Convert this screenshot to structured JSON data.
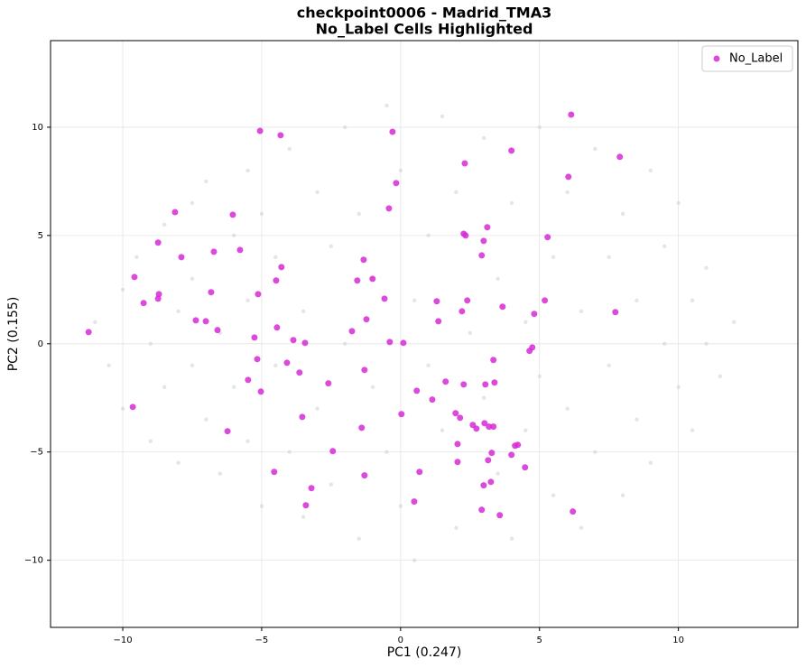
{
  "chart_data": {
    "type": "scatter",
    "title": "checkpoint0006 - Madrid_TMA3",
    "subtitle": "No_Label Cells Highlighted",
    "x_label": "PC1 (0.247)",
    "y_label": "PC2 (0.155)",
    "xlim": [
      -12.6,
      14.3
    ],
    "ylim": [
      -13.1,
      14
    ],
    "xticks": [
      {
        "value": -10,
        "label": "−10"
      },
      {
        "value": -5,
        "label": "−5"
      },
      0,
      5,
      10
    ],
    "yticks": [
      {
        "value": -10,
        "label": "−10"
      },
      {
        "value": -5,
        "label": "−5"
      },
      0,
      5,
      10
    ],
    "grid": true,
    "legend": "upper right",
    "series": [
      {
        "color": "#cccccc",
        "x": [
          -11,
          -10.5,
          -10,
          -10,
          -9.5,
          -9,
          -9,
          -8.5,
          -8.5,
          -8,
          -8,
          -7.5,
          -7.5,
          -7.5,
          -7,
          -7,
          -6.5,
          -6.5,
          -6,
          -6,
          -5.5,
          -5.5,
          -5.5,
          -5,
          -5,
          -4.5,
          -4.5,
          -4,
          -4,
          -3.5,
          -3.5,
          -3,
          -3,
          -2.5,
          -2.5,
          -2,
          -2,
          -1.5,
          -1.5,
          -1,
          -1,
          -0.5,
          -0.5,
          0,
          0,
          0.5,
          0.5,
          1,
          1,
          1.5,
          1.5,
          2,
          2,
          2.5,
          3,
          3,
          3.5,
          3.5,
          4,
          4,
          4.5,
          4.5,
          5,
          5,
          5.5,
          5.5,
          6,
          6,
          6.5,
          6.5,
          7,
          7,
          7.5,
          7.5,
          8,
          8,
          8.5,
          8.5,
          9,
          9,
          9.5,
          9.5,
          10,
          10,
          10.5,
          10.5,
          11,
          11,
          11.5,
          12
        ],
        "values": [
          1,
          -1,
          2.5,
          -3,
          4,
          0,
          -4.5,
          5.5,
          -2,
          1.5,
          -5.5,
          6.5,
          3,
          -1,
          -3.5,
          7.5,
          0.5,
          -6,
          5,
          -2,
          8,
          2,
          -4.5,
          -7.5,
          6,
          -1,
          4,
          9,
          -5,
          1.5,
          -8,
          7,
          -3,
          4.5,
          -6.5,
          10,
          0,
          -9,
          6,
          -2,
          3,
          11,
          -5,
          8,
          -7.5,
          2,
          -10,
          5,
          -1,
          10.5,
          -4,
          7,
          -8.5,
          0.5,
          9.5,
          -2.5,
          3,
          -6,
          6.5,
          -9,
          1,
          -4,
          10,
          -1.5,
          4,
          -7,
          7,
          -3,
          1.5,
          -8.5,
          9,
          -5,
          4,
          -1,
          6,
          -7,
          2,
          -3.5,
          8,
          -5.5,
          0,
          4.5,
          -2,
          6.5,
          2,
          -4,
          0,
          3.5,
          -1.5,
          1
        ]
      },
      {
        "name": "No_Label",
        "color": "#d62ad6",
        "x": [
          -11.23,
          -9.64,
          -9.58,
          -9.25,
          -8.73,
          -8.7,
          -8.73,
          -8.12,
          -7.89,
          -7.37,
          -7.01,
          -6.82,
          -6.72,
          -6.59,
          -6.23,
          -6.04,
          -5.78,
          -5.49,
          -5.26,
          -5.16,
          -5.13,
          -5.06,
          -5.03,
          -4.55,
          -4.48,
          -4.45,
          -4.32,
          -4.29,
          -4.09,
          -3.86,
          -3.64,
          -3.54,
          -3.44,
          -3.41,
          -3.21,
          -2.6,
          -2.44,
          -1.75,
          -1.56,
          -1.4,
          -1.33,
          -1.3,
          -1.3,
          -1.23,
          -1.01,
          -0.58,
          -0.42,
          -0.39,
          -0.29,
          -0.16,
          0.03,
          0.1,
          0.49,
          0.58,
          0.68,
          1.14,
          1.3,
          1.36,
          1.62,
          1.98,
          2.05,
          2.05,
          2.14,
          2.21,
          2.27,
          2.27,
          2.34,
          2.31,
          2.4,
          2.6,
          2.73,
          2.92,
          2.92,
          2.99,
          2.99,
          3.02,
          3.05,
          3.12,
          3.15,
          3.18,
          3.25,
          3.28,
          3.34,
          3.38,
          3.34,
          3.57,
          3.67,
          3.99,
          3.99,
          4.12,
          4.22,
          4.48,
          4.64,
          4.74,
          4.81,
          5.19,
          5.29,
          6.04,
          6.14,
          6.2,
          7.73,
          7.89
        ],
        "values": [
          0.54,
          -2.92,
          3.08,
          1.88,
          4.67,
          2.29,
          2.08,
          6.08,
          4.0,
          1.08,
          1.04,
          2.38,
          4.25,
          0.63,
          -4.04,
          5.96,
          4.33,
          -1.67,
          0.29,
          -0.71,
          2.29,
          9.83,
          -2.21,
          -5.92,
          2.92,
          0.75,
          9.63,
          3.54,
          -0.88,
          0.17,
          -1.33,
          -3.38,
          0.04,
          -7.46,
          -6.67,
          -1.83,
          -4.96,
          0.58,
          2.92,
          -3.88,
          3.88,
          -1.21,
          -6.08,
          1.13,
          3.0,
          2.08,
          6.25,
          0.08,
          9.79,
          7.42,
          -3.25,
          0.04,
          -7.29,
          -2.17,
          -5.92,
          -2.58,
          1.96,
          1.04,
          -1.75,
          -3.21,
          -4.63,
          -5.46,
          -3.42,
          1.5,
          -1.88,
          5.08,
          5.0,
          8.33,
          2.0,
          -3.75,
          -3.92,
          4.08,
          -7.67,
          4.75,
          -6.54,
          -3.67,
          -1.88,
          5.38,
          -5.38,
          -3.83,
          -6.38,
          -5.04,
          -3.83,
          -1.79,
          -0.75,
          -7.92,
          1.71,
          8.92,
          -5.13,
          -4.71,
          -4.67,
          -5.71,
          -0.33,
          -0.17,
          1.38,
          2.0,
          4.92,
          7.71,
          10.58,
          -7.75,
          1.46,
          8.63
        ]
      }
    ]
  }
}
